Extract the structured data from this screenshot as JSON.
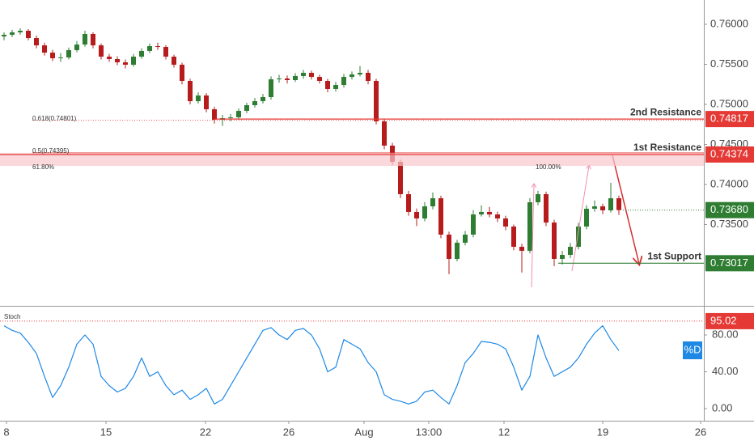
{
  "chart_data": {
    "type": "candlestick",
    "xlim": [
      0,
      87
    ],
    "xticks": [
      {
        "value": 0.8,
        "label": "8"
      },
      {
        "value": 13.1,
        "label": "15"
      },
      {
        "value": 25.4,
        "label": "22"
      },
      {
        "value": 35.7,
        "label": "26"
      },
      {
        "value": 45,
        "label": "Aug"
      },
      {
        "value": 53,
        "label": "13:00"
      },
      {
        "value": 62.3,
        "label": "12"
      },
      {
        "value": 74.5,
        "label": "19"
      },
      {
        "value": 86.6,
        "label": "26"
      }
    ],
    "ylim": [
      0.72485,
      0.76303
    ],
    "yticks": [
      {
        "value": 0.735,
        "label": "0.73500"
      },
      {
        "value": 0.74,
        "label": "0.74000"
      },
      {
        "value": 0.745,
        "label": "0.74500"
      },
      {
        "value": 0.75,
        "label": "0.75000"
      },
      {
        "value": 0.755,
        "label": "0.75500"
      },
      {
        "value": 0.76,
        "label": "0.76000"
      }
    ],
    "up_color": "#2e7d32",
    "down_color": "#b71c1c",
    "ohlc": [
      [
        0.75848,
        0.759,
        0.758,
        0.75869
      ],
      [
        0.75869,
        0.7593,
        0.7584,
        0.75899
      ],
      [
        0.75899,
        0.7595,
        0.7587,
        0.75919
      ],
      [
        0.75919,
        0.7594,
        0.758,
        0.75828
      ],
      [
        0.75828,
        0.7586,
        0.757,
        0.75737
      ],
      [
        0.75737,
        0.7577,
        0.7561,
        0.75646
      ],
      [
        0.75646,
        0.7568,
        0.7554,
        0.75576
      ],
      [
        0.75576,
        0.7564,
        0.7553,
        0.75586
      ],
      [
        0.75586,
        0.7571,
        0.7556,
        0.75677
      ],
      [
        0.75677,
        0.7579,
        0.7565,
        0.75747
      ],
      [
        0.75747,
        0.7592,
        0.7572,
        0.75879
      ],
      [
        0.75879,
        0.759,
        0.757,
        0.75737
      ],
      [
        0.75737,
        0.7576,
        0.7556,
        0.75596
      ],
      [
        0.75596,
        0.7563,
        0.7553,
        0.75566
      ],
      [
        0.75566,
        0.756,
        0.7549,
        0.75525
      ],
      [
        0.75525,
        0.7556,
        0.7545,
        0.75495
      ],
      [
        0.75495,
        0.7563,
        0.7547,
        0.75596
      ],
      [
        0.75596,
        0.757,
        0.7557,
        0.75667
      ],
      [
        0.75667,
        0.7576,
        0.7564,
        0.75727
      ],
      [
        0.75727,
        0.7577,
        0.7568,
        0.75717
      ],
      [
        0.75717,
        0.7574,
        0.7556,
        0.75596
      ],
      [
        0.75596,
        0.7562,
        0.7546,
        0.75495
      ],
      [
        0.75495,
        0.7552,
        0.7525,
        0.75293
      ],
      [
        0.75293,
        0.7532,
        0.75,
        0.7504
      ],
      [
        0.7504,
        0.7515,
        0.7501,
        0.75111
      ],
      [
        0.75111,
        0.7514,
        0.749,
        0.74939
      ],
      [
        0.74939,
        0.7497,
        0.7476,
        0.74808
      ],
      [
        0.74808,
        0.7487,
        0.7473,
        0.74828
      ],
      [
        0.74828,
        0.7488,
        0.7479,
        0.74838
      ],
      [
        0.74838,
        0.7495,
        0.7481,
        0.74919
      ],
      [
        0.74919,
        0.7502,
        0.7489,
        0.7499
      ],
      [
        0.7499,
        0.7508,
        0.7496,
        0.7504
      ],
      [
        0.7504,
        0.7513,
        0.7501,
        0.75091
      ],
      [
        0.75091,
        0.7535,
        0.7506,
        0.75313
      ],
      [
        0.75313,
        0.7537,
        0.7527,
        0.75323
      ],
      [
        0.75323,
        0.7536,
        0.7526,
        0.75303
      ],
      [
        0.75303,
        0.7539,
        0.7528,
        0.75354
      ],
      [
        0.75354,
        0.7543,
        0.7532,
        0.75394
      ],
      [
        0.75394,
        0.7542,
        0.7531,
        0.75343
      ],
      [
        0.75343,
        0.7537,
        0.7526,
        0.75293
      ],
      [
        0.75293,
        0.7532,
        0.7515,
        0.75192
      ],
      [
        0.75192,
        0.7528,
        0.7516,
        0.75242
      ],
      [
        0.75242,
        0.7538,
        0.7521,
        0.75343
      ],
      [
        0.75343,
        0.7541,
        0.7531,
        0.75374
      ],
      [
        0.75374,
        0.7548,
        0.7535,
        0.75394
      ],
      [
        0.75394,
        0.7543,
        0.7525,
        0.75293
      ],
      [
        0.75293,
        0.7532,
        0.7475,
        0.74788
      ],
      [
        0.74788,
        0.7482,
        0.7444,
        0.74485
      ],
      [
        0.74485,
        0.7452,
        0.7424,
        0.74283
      ],
      [
        0.74283,
        0.7431,
        0.7383,
        0.73879
      ],
      [
        0.73879,
        0.7392,
        0.7361,
        0.73657
      ],
      [
        0.73657,
        0.737,
        0.7348,
        0.73576
      ],
      [
        0.73576,
        0.7378,
        0.7354,
        0.73727
      ],
      [
        0.73727,
        0.739,
        0.7369,
        0.73828
      ],
      [
        0.73828,
        0.7386,
        0.7333,
        0.73374
      ],
      [
        0.73374,
        0.7341,
        0.7288,
        0.73071
      ],
      [
        0.73071,
        0.7331,
        0.7304,
        0.73273
      ],
      [
        0.73273,
        0.7342,
        0.7324,
        0.73374
      ],
      [
        0.73374,
        0.7368,
        0.7334,
        0.73626
      ],
      [
        0.73626,
        0.7374,
        0.736,
        0.73657
      ],
      [
        0.73657,
        0.7372,
        0.7359,
        0.73626
      ],
      [
        0.73626,
        0.7366,
        0.7353,
        0.73576
      ],
      [
        0.73576,
        0.7361,
        0.7343,
        0.73475
      ],
      [
        0.73475,
        0.735,
        0.7318,
        0.73222
      ],
      [
        0.73222,
        0.7326,
        0.729,
        0.73172
      ],
      [
        0.73172,
        0.7383,
        0.7314,
        0.73778
      ],
      [
        0.73778,
        0.7392,
        0.7374,
        0.73879
      ],
      [
        0.73879,
        0.7391,
        0.7348,
        0.73525
      ],
      [
        0.73525,
        0.7356,
        0.7298,
        0.73071
      ],
      [
        0.73071,
        0.7317,
        0.73,
        0.73121
      ],
      [
        0.73121,
        0.7327,
        0.7308,
        0.73222
      ],
      [
        0.73222,
        0.7352,
        0.7319,
        0.73475
      ],
      [
        0.73475,
        0.7374,
        0.7344,
        0.73697
      ],
      [
        0.73697,
        0.738,
        0.7366,
        0.73727
      ],
      [
        0.73727,
        0.7376,
        0.7363,
        0.73677
      ],
      [
        0.73677,
        0.7402,
        0.7365,
        0.73828
      ],
      [
        0.73828,
        0.7386,
        0.7362,
        0.7368
      ]
    ],
    "zone": [
      0.74232,
      0.74395
    ],
    "levels": [
      {
        "name": "2nd Resistance",
        "value": 0.74817,
        "color": "#e53935"
      },
      {
        "name": "1st Resistance",
        "value": 0.74374,
        "color": "#e53935"
      },
      {
        "name": "1st Support",
        "value": 0.73017,
        "color": "#2e7d32"
      }
    ],
    "last_price": {
      "value": 0.7368,
      "value_label": "0.73680",
      "color": "#2e7d32"
    },
    "fib": [
      {
        "label": "0.618(0.74801)",
        "value": 0.74801
      },
      {
        "label": "0.5(0.74395)",
        "value": 0.74395
      }
    ],
    "annotations": [
      "61.80%",
      "100.00%"
    ],
    "stoch": {
      "title": "Stoch",
      "legend": "%D",
      "color": "#1e88e5",
      "ylim": [
        -13.2,
        109.9
      ],
      "yticks": [
        {
          "value": 0,
          "label": "0.00"
        },
        {
          "value": 40,
          "label": "40.00"
        },
        {
          "value": 80,
          "label": "80.00"
        }
      ],
      "level": {
        "value": 95.02,
        "label": "95.02"
      },
      "values": [
        90,
        85,
        82,
        72,
        60,
        35,
        12,
        25,
        45,
        70,
        80,
        70,
        35,
        25,
        18,
        22,
        35,
        55,
        35,
        40,
        25,
        15,
        20,
        10,
        15,
        22,
        5,
        10,
        25,
        40,
        55,
        70,
        85,
        88,
        80,
        75,
        85,
        87,
        80,
        65,
        40,
        45,
        75,
        70,
        65,
        50,
        40,
        15,
        10,
        8,
        5,
        8,
        18,
        20,
        12,
        5,
        25,
        50,
        60,
        73,
        72,
        70,
        65,
        45,
        20,
        35,
        80,
        55,
        35,
        40,
        45,
        55,
        70,
        82,
        90,
        75,
        63
      ]
    }
  }
}
